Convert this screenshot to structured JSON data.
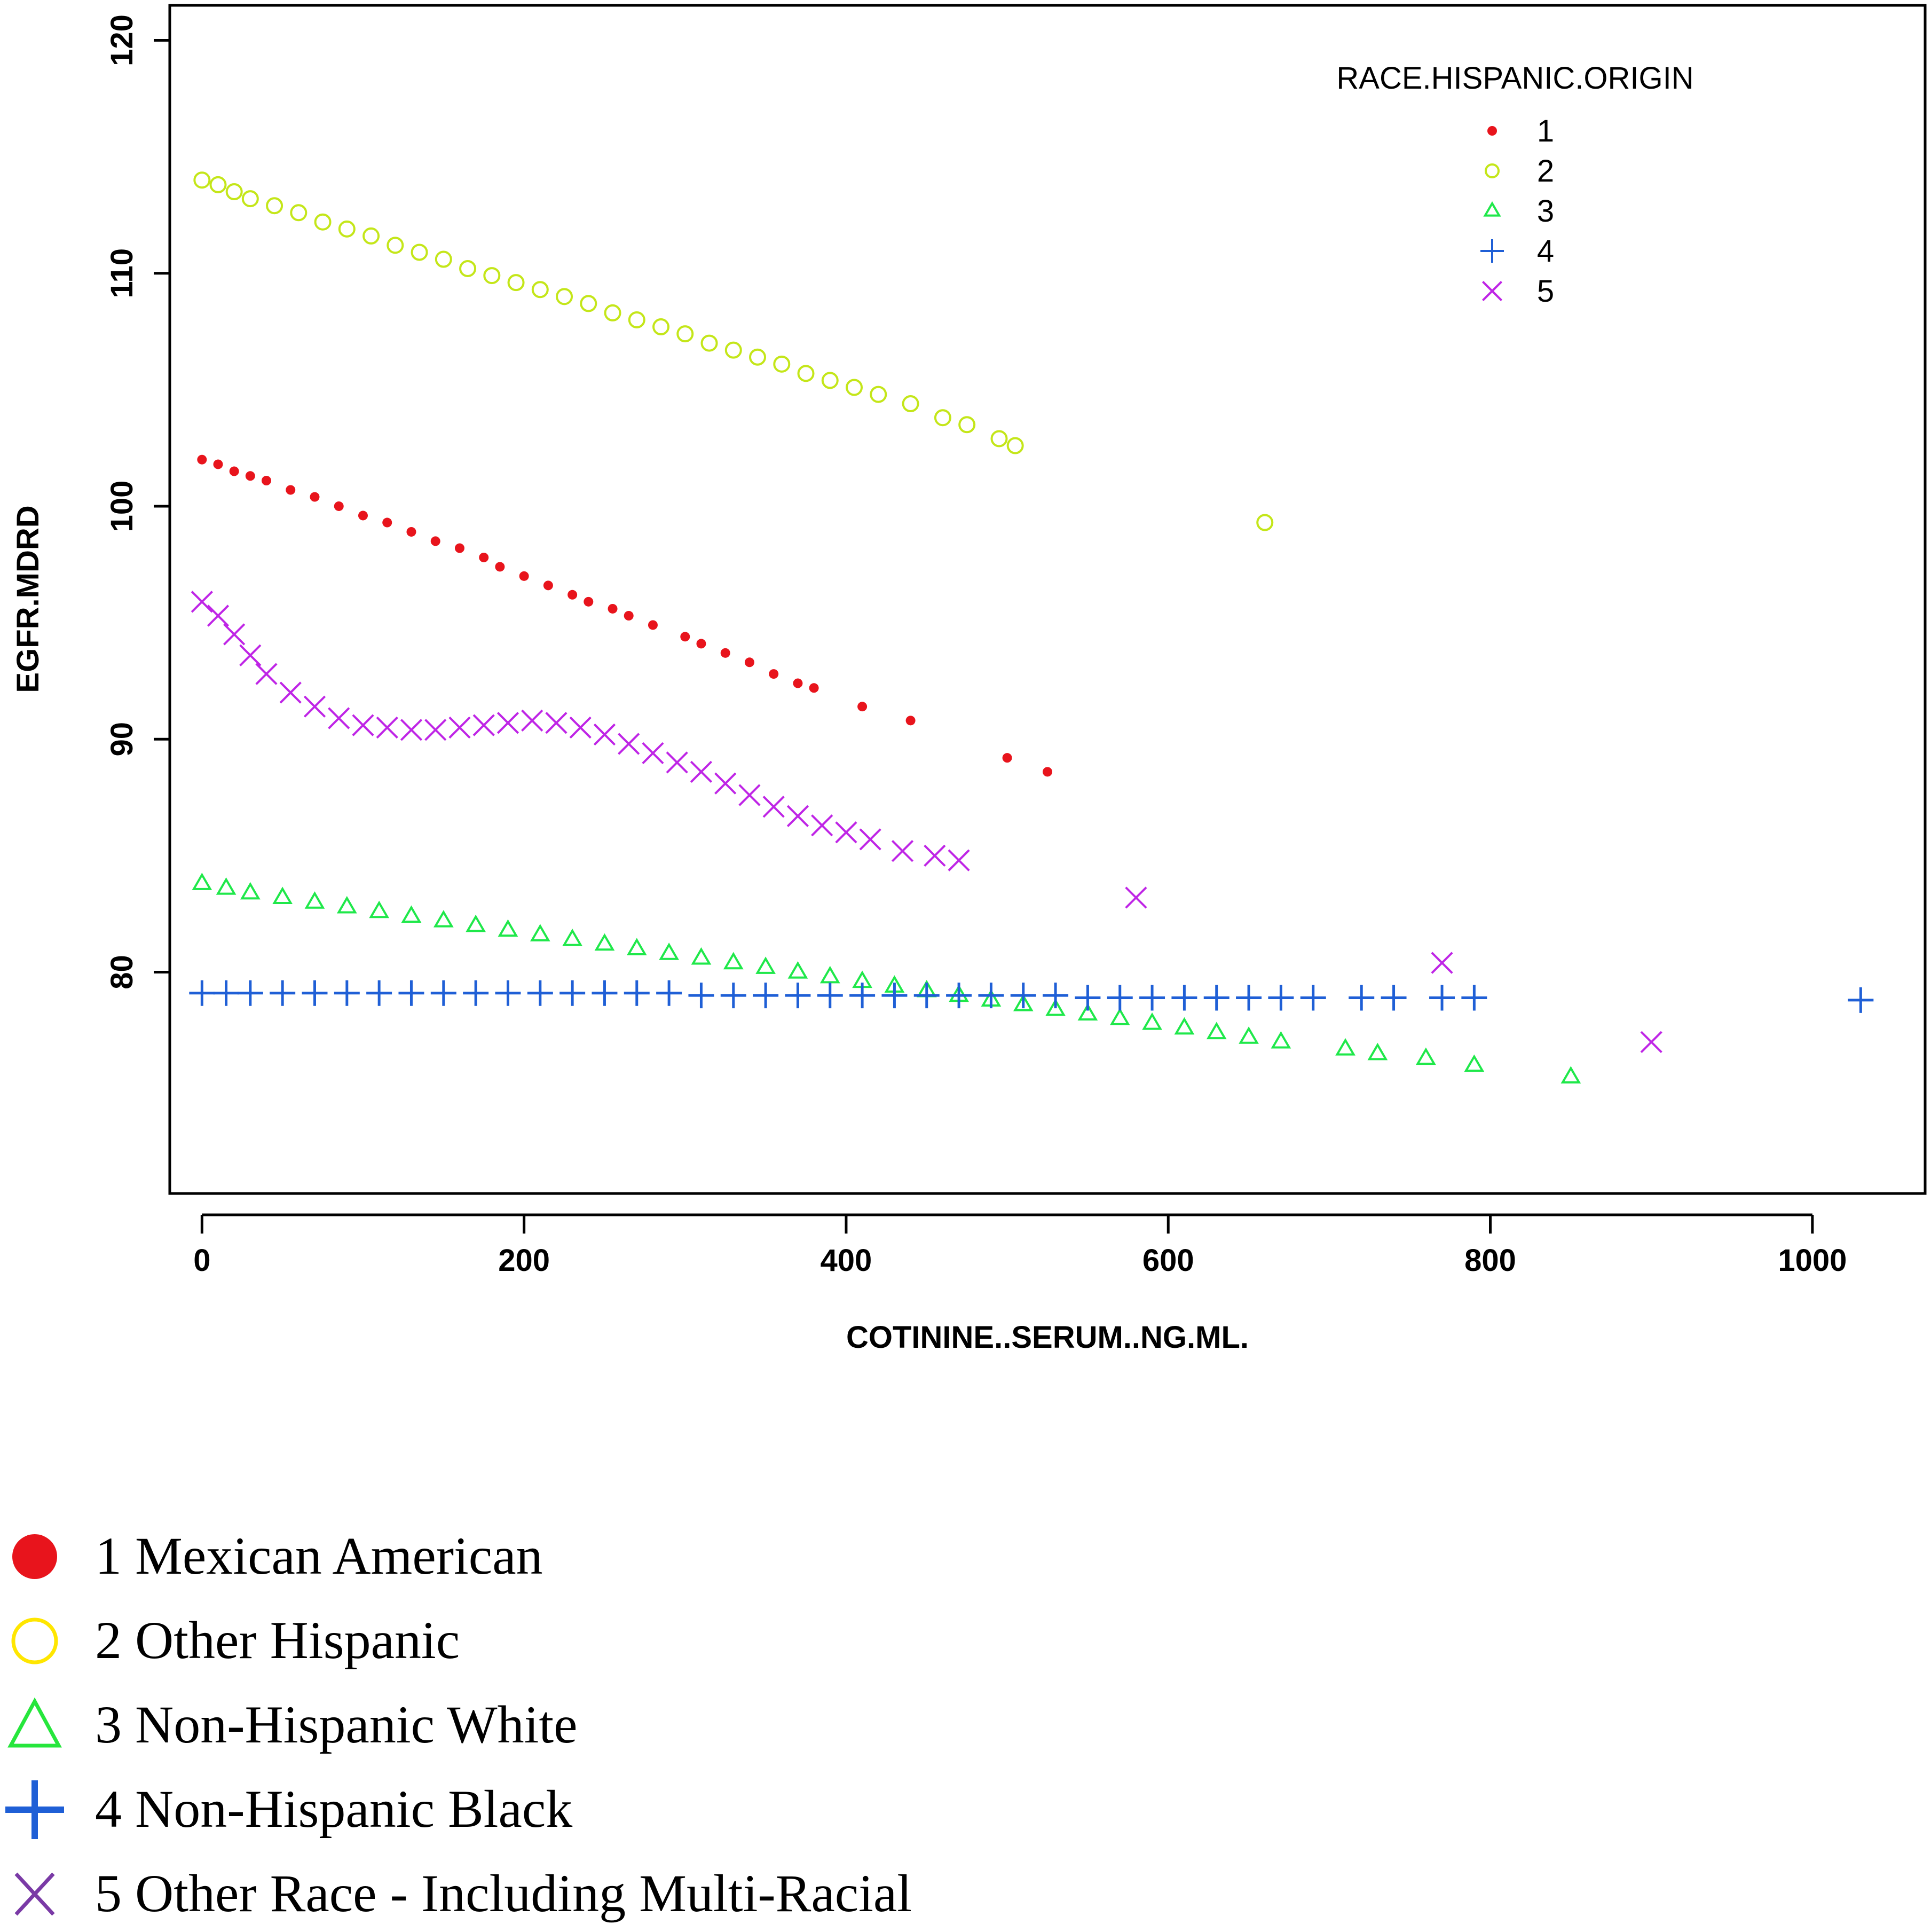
{
  "chart_data": {
    "type": "scatter",
    "xlabel": "COTININE..SERUM..NG.ML.",
    "ylabel": "EGFR.MDRD",
    "xlim": [
      -20,
      1070
    ],
    "ylim": [
      70.5,
      121.5
    ],
    "x_ticks": [
      0,
      200,
      400,
      600,
      800,
      1000
    ],
    "y_ticks": [
      80,
      90,
      100,
      110,
      120
    ],
    "legend_title": "RACE.HISPANIC.ORIGIN",
    "legend_position": "top-right",
    "series": [
      {
        "name": "1",
        "marker": "dot",
        "color": "#e8141c",
        "x": [
          0,
          10,
          20,
          30,
          40,
          55,
          70,
          85,
          100,
          115,
          130,
          145,
          160,
          175,
          185,
          200,
          215,
          230,
          240,
          255,
          265,
          280,
          300,
          310,
          325,
          340,
          355,
          370,
          380,
          410,
          440,
          500,
          525
        ],
        "y": [
          102.0,
          101.8,
          101.5,
          101.3,
          101.1,
          100.7,
          100.4,
          100.0,
          99.6,
          99.3,
          98.9,
          98.5,
          98.2,
          97.8,
          97.4,
          97.0,
          96.6,
          96.2,
          95.9,
          95.6,
          95.3,
          94.9,
          94.4,
          94.1,
          93.7,
          93.3,
          92.8,
          92.4,
          92.2,
          91.4,
          90.8,
          89.2,
          88.6
        ]
      },
      {
        "name": "2",
        "marker": "open-circle",
        "color": "#c4e619",
        "x": [
          0,
          10,
          20,
          30,
          45,
          60,
          75,
          90,
          105,
          120,
          135,
          150,
          165,
          180,
          195,
          210,
          225,
          240,
          255,
          270,
          285,
          300,
          315,
          330,
          345,
          360,
          375,
          390,
          405,
          420,
          440,
          460,
          475,
          495,
          505,
          660
        ],
        "y": [
          114.0,
          113.8,
          113.5,
          113.2,
          112.9,
          112.6,
          112.2,
          111.9,
          111.6,
          111.2,
          110.9,
          110.6,
          110.2,
          109.9,
          109.6,
          109.3,
          109.0,
          108.7,
          108.3,
          108.0,
          107.7,
          107.4,
          107.0,
          106.7,
          106.4,
          106.1,
          105.7,
          105.4,
          105.1,
          104.8,
          104.4,
          103.8,
          103.5,
          102.9,
          102.6,
          99.3
        ]
      },
      {
        "name": "3",
        "marker": "open-triangle",
        "color": "#1fe84a",
        "x": [
          0,
          15,
          30,
          50,
          70,
          90,
          110,
          130,
          150,
          170,
          190,
          210,
          230,
          250,
          270,
          290,
          310,
          330,
          350,
          370,
          390,
          410,
          430,
          450,
          470,
          490,
          510,
          530,
          550,
          570,
          590,
          610,
          630,
          650,
          670,
          710,
          730,
          760,
          790,
          850
        ],
        "y": [
          83.8,
          83.6,
          83.4,
          83.2,
          83.0,
          82.8,
          82.6,
          82.4,
          82.2,
          82.0,
          81.8,
          81.6,
          81.4,
          81.2,
          81.0,
          80.8,
          80.6,
          80.4,
          80.2,
          80.0,
          79.8,
          79.6,
          79.4,
          79.2,
          79.0,
          78.8,
          78.6,
          78.4,
          78.2,
          78.0,
          77.8,
          77.6,
          77.4,
          77.2,
          77.0,
          76.7,
          76.5,
          76.3,
          76.0,
          75.5
        ]
      },
      {
        "name": "4",
        "marker": "plus",
        "color": "#1f5fd6",
        "x": [
          0,
          15,
          30,
          50,
          70,
          90,
          110,
          130,
          150,
          170,
          190,
          210,
          230,
          250,
          270,
          290,
          310,
          330,
          350,
          370,
          390,
          410,
          430,
          450,
          470,
          490,
          510,
          530,
          550,
          570,
          590,
          610,
          630,
          650,
          670,
          690,
          720,
          740,
          770,
          790,
          1030
        ],
        "y": [
          79.1,
          79.1,
          79.1,
          79.1,
          79.1,
          79.1,
          79.1,
          79.1,
          79.1,
          79.1,
          79.1,
          79.1,
          79.1,
          79.1,
          79.1,
          79.1,
          79.0,
          79.0,
          79.0,
          79.0,
          79.0,
          79.0,
          79.0,
          79.0,
          79.0,
          79.0,
          79.0,
          79.0,
          78.9,
          78.9,
          78.9,
          78.9,
          78.9,
          78.9,
          78.9,
          78.9,
          78.9,
          78.9,
          78.9,
          78.9,
          78.8
        ]
      },
      {
        "name": "5",
        "marker": "x",
        "color": "#bf25e6",
        "x": [
          0,
          10,
          20,
          30,
          40,
          55,
          70,
          85,
          100,
          115,
          130,
          145,
          160,
          175,
          190,
          205,
          220,
          235,
          250,
          265,
          280,
          295,
          310,
          325,
          340,
          355,
          370,
          385,
          400,
          415,
          435,
          455,
          470,
          580,
          770,
          900
        ],
        "y": [
          95.9,
          95.3,
          94.5,
          93.6,
          92.8,
          92.0,
          91.4,
          90.9,
          90.6,
          90.5,
          90.4,
          90.4,
          90.5,
          90.6,
          90.7,
          90.8,
          90.7,
          90.5,
          90.2,
          89.8,
          89.4,
          89.0,
          88.6,
          88.1,
          87.6,
          87.1,
          86.7,
          86.3,
          86.0,
          85.7,
          85.2,
          85.0,
          84.8,
          83.2,
          80.4,
          77.0
        ]
      }
    ]
  },
  "outer_legend": {
    "items": [
      {
        "label": "1 Mexican American",
        "marker": "filled-circle",
        "color": "#e8141c"
      },
      {
        "label": "2 Other Hispanic",
        "marker": "open-circle",
        "color": "#ffe600"
      },
      {
        "label": "3 Non-Hispanic White",
        "marker": "open-triangle",
        "color": "#26e63c"
      },
      {
        "label": "4 Non-Hispanic Black",
        "marker": "plus",
        "color": "#1f5fd6"
      },
      {
        "label": "5 Other Race - Including Multi-Racial",
        "marker": "x",
        "color": "#7a3aa6"
      }
    ]
  }
}
